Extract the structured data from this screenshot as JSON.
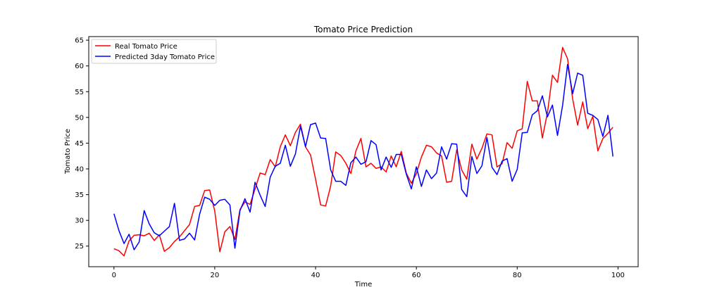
{
  "chart_data": {
    "type": "line",
    "title": "Tomato Price Prediction",
    "xlabel": "Time",
    "ylabel": "Tomato Price",
    "xlim": [
      -5,
      104
    ],
    "ylim": [
      21,
      65.7
    ],
    "xticks": [
      0,
      20,
      40,
      60,
      80,
      100
    ],
    "yticks": [
      25,
      30,
      35,
      40,
      45,
      50,
      55,
      60,
      65
    ],
    "grid": false,
    "legend_position": "upper-left",
    "series": [
      {
        "name": "Real Tomato Price",
        "color": "#ff0000",
        "values": [
          24.5,
          24.1,
          23.1,
          26.0,
          27.1,
          27.2,
          27.0,
          27.5,
          26.1,
          27.2,
          24.0,
          24.7,
          25.9,
          26.8,
          28.0,
          29.2,
          32.7,
          32.9,
          35.8,
          35.9,
          31.8,
          23.9,
          27.8,
          28.8,
          26.3,
          32.1,
          33.6,
          33.1,
          36.1,
          39.2,
          38.9,
          41.8,
          40.4,
          44.3,
          46.6,
          44.5,
          47.1,
          48.7,
          44.3,
          42.7,
          38.0,
          33.0,
          32.8,
          36.7,
          43.3,
          42.6,
          41.1,
          39.1,
          43.5,
          45.9,
          40.4,
          41.1,
          40.1,
          40.4,
          39.4,
          42.5,
          40.4,
          43.4,
          39.2,
          37.2,
          39.1,
          42.3,
          44.6,
          44.3,
          43.1,
          42.5,
          37.4,
          37.6,
          43.7,
          39.8,
          38.0,
          44.8,
          41.9,
          44.0,
          46.8,
          46.6,
          40.4,
          41.0,
          45.1,
          44.0,
          47.4,
          47.8,
          57.0,
          53.2,
          53.2,
          46.0,
          50.9,
          58.2,
          56.8,
          63.6,
          61.4,
          53.6,
          48.5,
          53.0,
          47.8,
          50.2,
          43.5,
          45.9,
          46.9,
          48.1
        ]
      },
      {
        "name": "Predicted 3day Tomato Price",
        "color": "#0000ff",
        "values": [
          31.3,
          28.0,
          25.5,
          27.3,
          24.3,
          25.8,
          31.9,
          29.3,
          27.6,
          27.0,
          27.9,
          28.8,
          33.3,
          26.1,
          26.4,
          27.5,
          26.2,
          31.2,
          34.5,
          34.1,
          32.9,
          33.9,
          34.1,
          33.0,
          24.6,
          31.9,
          34.2,
          31.6,
          37.4,
          34.9,
          32.7,
          38.4,
          40.5,
          41.1,
          44.6,
          40.5,
          42.9,
          48.3,
          44.3,
          48.6,
          48.9,
          46.0,
          45.9,
          39.8,
          37.6,
          37.6,
          36.8,
          41.2,
          42.3,
          40.9,
          41.4,
          45.5,
          44.7,
          39.8,
          42.3,
          40.3,
          42.8,
          42.8,
          39.0,
          36.1,
          40.4,
          36.6,
          39.8,
          38.1,
          39.2,
          44.3,
          41.9,
          44.9,
          44.8,
          36.0,
          34.6,
          42.4,
          39.1,
          40.6,
          46.1,
          40.3,
          38.9,
          41.5,
          42.0,
          37.6,
          39.9,
          47.0,
          47.1,
          50.5,
          51.3,
          54.2,
          50.1,
          52.4,
          46.5,
          52.3,
          60.3,
          54.6,
          58.6,
          58.2,
          50.8,
          50.4,
          49.6,
          46.3,
          50.4,
          42.4
        ]
      }
    ]
  }
}
